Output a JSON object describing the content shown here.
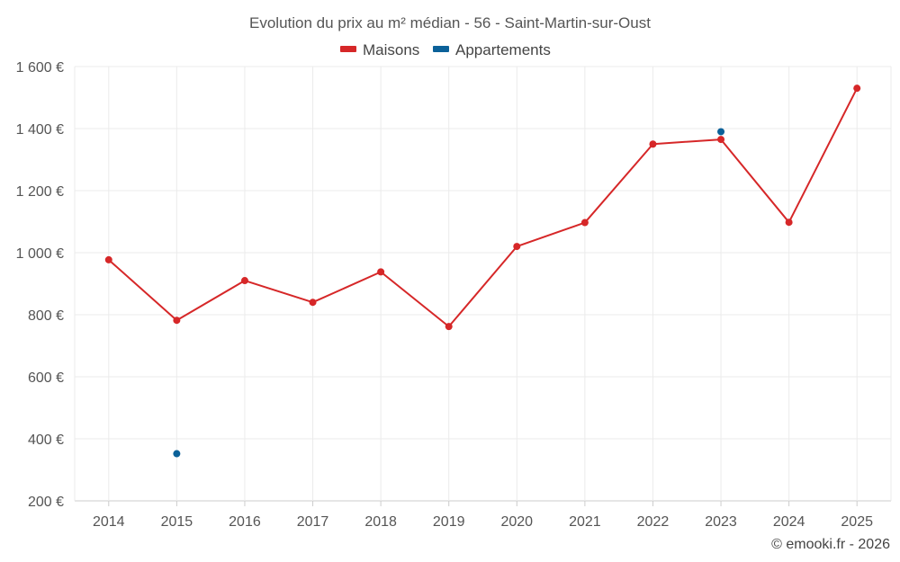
{
  "chart_data": {
    "type": "line",
    "title": "Evolution du prix au m² médian - 56 - Saint-Martin-sur-Oust",
    "categories": [
      "2014",
      "2015",
      "2016",
      "2017",
      "2018",
      "2019",
      "2020",
      "2021",
      "2022",
      "2023",
      "2024",
      "2025"
    ],
    "series": [
      {
        "name": "Maisons",
        "color": "#d62728",
        "style": "line-with-markers",
        "values": [
          977,
          782,
          910,
          840,
          938,
          762,
          1020,
          1097,
          1350,
          1365,
          1098,
          1530
        ]
      },
      {
        "name": "Appartements",
        "color": "#0b6199",
        "style": "markers-only",
        "values": [
          null,
          352,
          null,
          null,
          null,
          null,
          null,
          null,
          null,
          1390,
          null,
          null
        ]
      }
    ],
    "y_ticks": [
      200,
      400,
      600,
      800,
      1000,
      1200,
      1400,
      1600
    ],
    "y_tick_labels": [
      "200 €",
      "400 €",
      "600 €",
      "800 €",
      "1 000 €",
      "1 200 €",
      "1 400 €",
      "1 600 €"
    ],
    "ylim": [
      200,
      1600
    ],
    "xlabel": "",
    "ylabel": "",
    "grid": true,
    "legend_position": "top-center"
  },
  "credit": "© emooki.fr - 2026"
}
